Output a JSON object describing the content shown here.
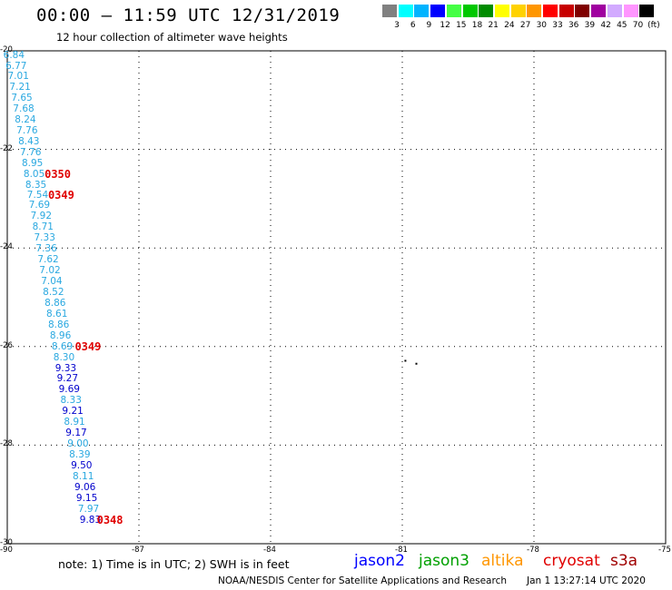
{
  "header": {
    "title": "00:00 – 11:59 UTC 12/31/2019",
    "subtitle": "12 hour collection of altimeter wave heights"
  },
  "legend": {
    "unit": "(ft)",
    "colors": [
      {
        "color": "#808080",
        "label": "3"
      },
      {
        "color": "#00ffff",
        "label": "6"
      },
      {
        "color": "#00b4ff",
        "label": "9"
      },
      {
        "color": "#0000ff",
        "label": "12"
      },
      {
        "color": "#44ff44",
        "label": "15"
      },
      {
        "color": "#00c800",
        "label": "18"
      },
      {
        "color": "#008c00",
        "label": "21"
      },
      {
        "color": "#ffff00",
        "label": "24"
      },
      {
        "color": "#ffd200",
        "label": "27"
      },
      {
        "color": "#ff9600",
        "label": "30"
      },
      {
        "color": "#ff0000",
        "label": "33"
      },
      {
        "color": "#c80000",
        "label": "36"
      },
      {
        "color": "#800000",
        "label": "39"
      },
      {
        "color": "#a000a0",
        "label": "42"
      },
      {
        "color": "#d2aaff",
        "label": "45"
      },
      {
        "color": "#ff96ff",
        "label": "70"
      },
      {
        "color": "#000000",
        "label": ""
      }
    ]
  },
  "map": {
    "lon_range": [
      -90,
      -75
    ],
    "lat_range": [
      -30,
      -20
    ],
    "lon_labels": [
      "-90",
      "-87",
      "-84",
      "-81",
      "-78",
      "-75"
    ],
    "lat_labels": [
      "-20",
      "-22",
      "-24",
      "-26",
      "-28",
      "-30"
    ],
    "wave_heights": [
      {
        "v": "6.84",
        "lon": -89.8,
        "lat": -20.05,
        "c": "#2aa8e0"
      },
      {
        "v": "6.77",
        "lon": -89.75,
        "lat": -20.27,
        "c": "#2aa8e0"
      },
      {
        "v": "7.01",
        "lon": -89.7,
        "lat": -20.48,
        "c": "#2aa8e0"
      },
      {
        "v": "7.21",
        "lon": -89.66,
        "lat": -20.7,
        "c": "#2aa8e0"
      },
      {
        "v": "7.65",
        "lon": -89.62,
        "lat": -20.92,
        "c": "#2aa8e0"
      },
      {
        "v": "7.68",
        "lon": -89.58,
        "lat": -21.14,
        "c": "#2aa8e0"
      },
      {
        "v": "8.24",
        "lon": -89.54,
        "lat": -21.36,
        "c": "#2aa8e0"
      },
      {
        "v": "7.76",
        "lon": -89.5,
        "lat": -21.58,
        "c": "#2aa8e0"
      },
      {
        "v": "8.43",
        "lon": -89.46,
        "lat": -21.8,
        "c": "#2aa8e0"
      },
      {
        "v": "7.76",
        "lon": -89.42,
        "lat": -22.02,
        "c": "#2aa8e0"
      },
      {
        "v": "8.95",
        "lon": -89.38,
        "lat": -22.24,
        "c": "#2aa8e0"
      },
      {
        "v": "8.05",
        "lon": -89.34,
        "lat": -22.46,
        "c": "#2aa8e0"
      },
      {
        "v": "8.35",
        "lon": -89.3,
        "lat": -22.68,
        "c": "#2aa8e0"
      },
      {
        "v": "7.54",
        "lon": -89.26,
        "lat": -22.9,
        "c": "#2aa8e0"
      },
      {
        "v": "7.69",
        "lon": -89.22,
        "lat": -23.1,
        "c": "#2aa8e0"
      },
      {
        "v": "7.92",
        "lon": -89.18,
        "lat": -23.32,
        "c": "#2aa8e0"
      },
      {
        "v": "8.71",
        "lon": -89.14,
        "lat": -23.54,
        "c": "#2aa8e0"
      },
      {
        "v": "7.33",
        "lon": -89.1,
        "lat": -23.76,
        "c": "#2aa8e0"
      },
      {
        "v": "7.36",
        "lon": -89.06,
        "lat": -23.98,
        "c": "#2aa8e0"
      },
      {
        "v": "7.62",
        "lon": -89.02,
        "lat": -24.2,
        "c": "#2aa8e0"
      },
      {
        "v": "7.02",
        "lon": -88.98,
        "lat": -24.42,
        "c": "#2aa8e0"
      },
      {
        "v": "7.04",
        "lon": -88.94,
        "lat": -24.64,
        "c": "#2aa8e0"
      },
      {
        "v": "8.52",
        "lon": -88.9,
        "lat": -24.86,
        "c": "#2aa8e0"
      },
      {
        "v": "8.86",
        "lon": -88.86,
        "lat": -25.08,
        "c": "#2aa8e0"
      },
      {
        "v": "8.61",
        "lon": -88.82,
        "lat": -25.3,
        "c": "#2aa8e0"
      },
      {
        "v": "8.86",
        "lon": -88.78,
        "lat": -25.52,
        "c": "#2aa8e0"
      },
      {
        "v": "8.96",
        "lon": -88.74,
        "lat": -25.74,
        "c": "#2aa8e0"
      },
      {
        "v": "8.69",
        "lon": -88.7,
        "lat": -25.96,
        "c": "#2aa8e0"
      },
      {
        "v": "8.30",
        "lon": -88.66,
        "lat": -26.18,
        "c": "#2aa8e0"
      },
      {
        "v": "9.33",
        "lon": -88.62,
        "lat": -26.4,
        "c": "#0000cc"
      },
      {
        "v": "9.27",
        "lon": -88.58,
        "lat": -26.62,
        "c": "#0000cc"
      },
      {
        "v": "9.69",
        "lon": -88.54,
        "lat": -26.84,
        "c": "#0000cc"
      },
      {
        "v": "8.33",
        "lon": -88.5,
        "lat": -27.06,
        "c": "#2aa8e0"
      },
      {
        "v": "9.21",
        "lon": -88.46,
        "lat": -27.28,
        "c": "#0000cc"
      },
      {
        "v": "8.91",
        "lon": -88.42,
        "lat": -27.5,
        "c": "#2aa8e0"
      },
      {
        "v": "9.17",
        "lon": -88.38,
        "lat": -27.72,
        "c": "#0000cc"
      },
      {
        "v": "9.00",
        "lon": -88.34,
        "lat": -27.94,
        "c": "#2aa8e0"
      },
      {
        "v": "8.39",
        "lon": -88.3,
        "lat": -28.16,
        "c": "#2aa8e0"
      },
      {
        "v": "9.50",
        "lon": -88.26,
        "lat": -28.38,
        "c": "#0000cc"
      },
      {
        "v": "8.11",
        "lon": -88.22,
        "lat": -28.6,
        "c": "#2aa8e0"
      },
      {
        "v": "9.06",
        "lon": -88.18,
        "lat": -28.82,
        "c": "#0000cc"
      },
      {
        "v": "9.15",
        "lon": -88.14,
        "lat": -29.04,
        "c": "#0000cc"
      },
      {
        "v": "7.97",
        "lon": -88.1,
        "lat": -29.26,
        "c": "#2aa8e0"
      },
      {
        "v": "9.83",
        "lon": -88.06,
        "lat": -29.48,
        "c": "#0000cc"
      }
    ],
    "times": [
      {
        "t": "0350",
        "lon": -88.86,
        "lat": -22.46
      },
      {
        "t": "0349",
        "lon": -88.78,
        "lat": -22.9
      },
      {
        "t": "0349",
        "lon": -88.17,
        "lat": -25.96
      },
      {
        "t": "0348",
        "lon": -87.67,
        "lat": -29.48
      }
    ]
  },
  "footer": {
    "note": "note: 1) Time is in UTC; 2) SWH is in feet",
    "satellites": [
      {
        "name": "jason2",
        "color": "#0000ff"
      },
      {
        "name": "jason3",
        "color": "#00a000"
      },
      {
        "name": "altika",
        "color": "#ff9600"
      },
      {
        "name": "cryosat",
        "color": "#e00000"
      },
      {
        "name": "s3a",
        "color": "#a00000"
      }
    ],
    "credit": "NOAA/NESDIS Center for Satellite Applications and Research",
    "timestamp": "Jan  1 13:27:14 UTC 2020"
  }
}
